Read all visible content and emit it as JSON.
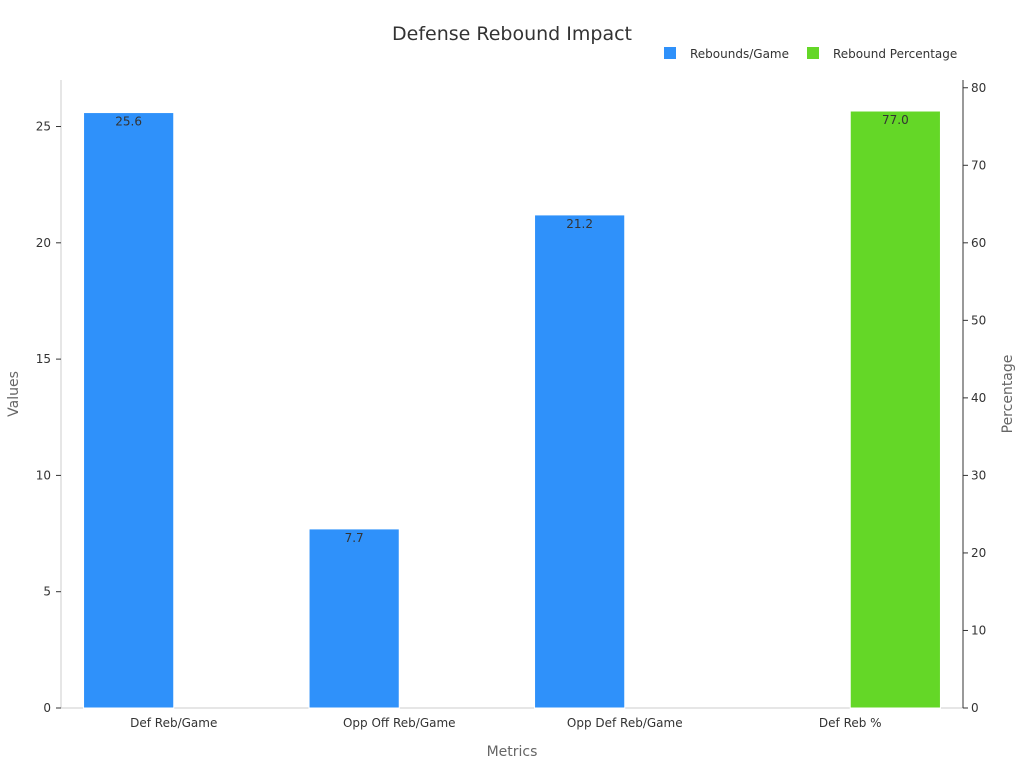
{
  "chart_data": {
    "type": "bar",
    "title": "Defense Rebound Impact",
    "xlabel": "Metrics",
    "ylabel": "Values",
    "y2label": "Percentage",
    "categories": [
      "Def Reb/Game",
      "Opp Off Reb/Game",
      "Opp Def Reb/Game",
      "Def Reb %"
    ],
    "ylim": [
      0,
      27
    ],
    "y2lim": [
      0,
      81
    ],
    "yticks": [
      0,
      5,
      10,
      15,
      20,
      25
    ],
    "y2ticks": [
      0,
      10,
      20,
      30,
      40,
      50,
      60,
      70,
      80
    ],
    "legend_position": "top-right",
    "grid": false,
    "series": [
      {
        "name": "Rebounds/Game",
        "axis": "left",
        "color": "#2f91fa",
        "values": [
          25.6,
          7.7,
          21.2,
          null
        ],
        "labels": [
          "25.6",
          "7.7",
          "21.2",
          null
        ]
      },
      {
        "name": "Rebound Percentage",
        "axis": "right",
        "color": "#64d727",
        "values": [
          null,
          null,
          null,
          77.0
        ],
        "labels": [
          null,
          null,
          null,
          "77.0"
        ]
      }
    ]
  }
}
